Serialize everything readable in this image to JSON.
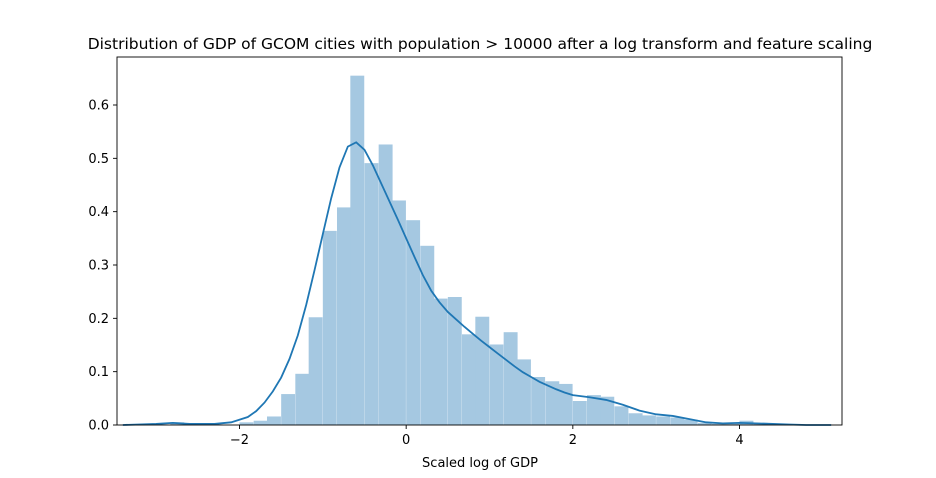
{
  "chart_data": {
    "type": "bar",
    "title": "Distribution of GDP of GCOM cities with population > 10000 after a log transform and feature scaling",
    "xlabel": "Scaled log of GDP",
    "ylabel": "",
    "xlim": [
      -3.47,
      5.23
    ],
    "ylim": [
      0,
      0.69
    ],
    "xticks": [
      -2,
      0,
      2,
      4
    ],
    "xtick_labels": [
      "−2",
      "0",
      "2",
      "4"
    ],
    "yticks": [
      0.0,
      0.1,
      0.2,
      0.3,
      0.4,
      0.5,
      0.6
    ],
    "ytick_labels": [
      "0.0",
      "0.1",
      "0.2",
      "0.3",
      "0.4",
      "0.5",
      "0.6"
    ],
    "grid": false,
    "colors": {
      "bars": "#a5c8e1",
      "kde": "#1f77b4"
    },
    "histogram": {
      "bin_width": 0.167,
      "bins": [
        {
          "x0": -2.83,
          "value": 0.005
        },
        {
          "x0": -2.66,
          "value": 0.003
        },
        {
          "x0": -2.0,
          "value": 0.005
        },
        {
          "x0": -1.83,
          "value": 0.008
        },
        {
          "x0": -1.67,
          "value": 0.016
        },
        {
          "x0": -1.5,
          "value": 0.058
        },
        {
          "x0": -1.33,
          "value": 0.096
        },
        {
          "x0": -1.17,
          "value": 0.202
        },
        {
          "x0": -1.0,
          "value": 0.364
        },
        {
          "x0": -0.83,
          "value": 0.408
        },
        {
          "x0": -0.67,
          "value": 0.655
        },
        {
          "x0": -0.5,
          "value": 0.491
        },
        {
          "x0": -0.33,
          "value": 0.526
        },
        {
          "x0": -0.17,
          "value": 0.421
        },
        {
          "x0": 0.0,
          "value": 0.384
        },
        {
          "x0": 0.17,
          "value": 0.336
        },
        {
          "x0": 0.33,
          "value": 0.237
        },
        {
          "x0": 0.5,
          "value": 0.24
        },
        {
          "x0": 0.67,
          "value": 0.17
        },
        {
          "x0": 0.83,
          "value": 0.203
        },
        {
          "x0": 1.0,
          "value": 0.151
        },
        {
          "x0": 1.17,
          "value": 0.174
        },
        {
          "x0": 1.33,
          "value": 0.123
        },
        {
          "x0": 1.5,
          "value": 0.09
        },
        {
          "x0": 1.67,
          "value": 0.082
        },
        {
          "x0": 1.83,
          "value": 0.077
        },
        {
          "x0": 2.0,
          "value": 0.045
        },
        {
          "x0": 2.17,
          "value": 0.056
        },
        {
          "x0": 2.33,
          "value": 0.053
        },
        {
          "x0": 2.5,
          "value": 0.035
        },
        {
          "x0": 2.67,
          "value": 0.022
        },
        {
          "x0": 2.83,
          "value": 0.018
        },
        {
          "x0": 3.0,
          "value": 0.016
        },
        {
          "x0": 3.17,
          "value": 0.014
        },
        {
          "x0": 3.33,
          "value": 0.01
        },
        {
          "x0": 3.5,
          "value": 0.004
        },
        {
          "x0": 3.67,
          "value": 0.002
        },
        {
          "x0": 3.83,
          "value": 0.002
        },
        {
          "x0": 4.0,
          "value": 0.008
        },
        {
          "x0": 4.17,
          "value": 0.004
        }
      ]
    },
    "kde": {
      "x": [
        -3.4,
        -3.0,
        -2.8,
        -2.6,
        -2.3,
        -2.1,
        -1.9,
        -1.8,
        -1.7,
        -1.6,
        -1.5,
        -1.4,
        -1.3,
        -1.2,
        -1.1,
        -1.0,
        -0.9,
        -0.8,
        -0.7,
        -0.6,
        -0.5,
        -0.4,
        -0.3,
        -0.2,
        -0.1,
        0.0,
        0.1,
        0.2,
        0.3,
        0.4,
        0.5,
        0.6,
        0.7,
        0.8,
        0.9,
        1.0,
        1.1,
        1.2,
        1.3,
        1.4,
        1.5,
        1.6,
        1.7,
        1.8,
        1.9,
        2.0,
        2.2,
        2.4,
        2.6,
        2.8,
        3.0,
        3.2,
        3.4,
        3.6,
        3.8,
        4.0,
        4.2,
        4.4,
        4.6,
        4.8,
        5.1
      ],
      "y": [
        0.0,
        0.002,
        0.004,
        0.002,
        0.002,
        0.005,
        0.015,
        0.026,
        0.042,
        0.063,
        0.089,
        0.124,
        0.168,
        0.225,
        0.29,
        0.358,
        0.425,
        0.483,
        0.522,
        0.53,
        0.516,
        0.487,
        0.453,
        0.419,
        0.385,
        0.35,
        0.315,
        0.281,
        0.252,
        0.23,
        0.212,
        0.198,
        0.184,
        0.171,
        0.158,
        0.146,
        0.134,
        0.122,
        0.11,
        0.099,
        0.09,
        0.081,
        0.074,
        0.067,
        0.061,
        0.056,
        0.052,
        0.047,
        0.038,
        0.027,
        0.02,
        0.017,
        0.011,
        0.005,
        0.003,
        0.004,
        0.003,
        0.002,
        0.001,
        0.0,
        0.0
      ]
    }
  }
}
